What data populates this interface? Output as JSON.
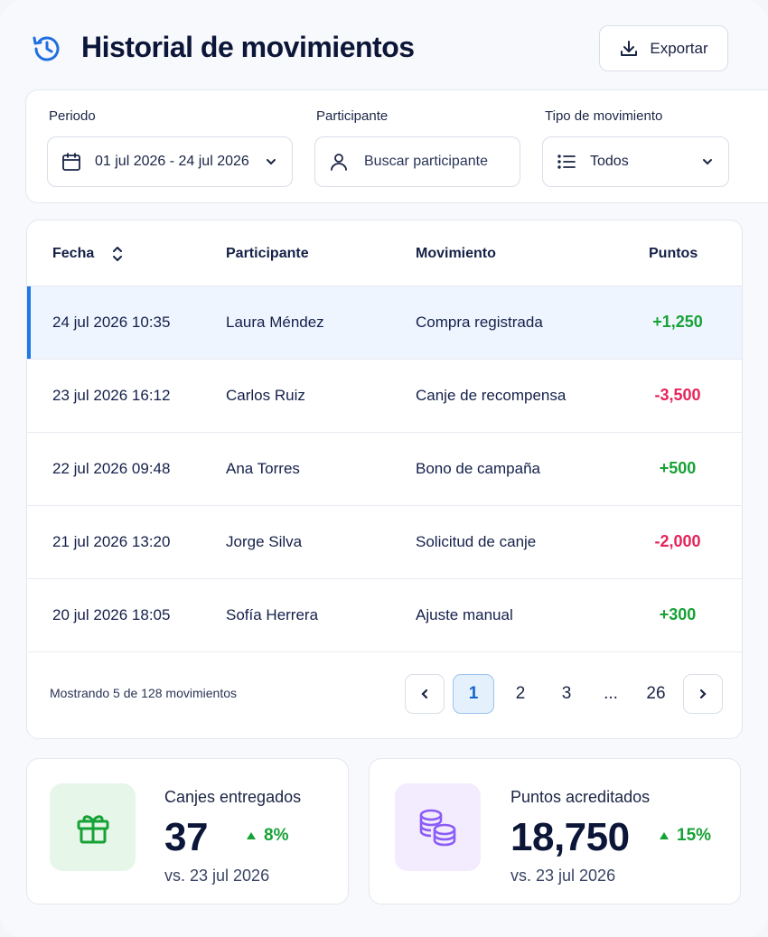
{
  "header": {
    "title": "Historial de movimientos",
    "export_label": "Exportar"
  },
  "filters": {
    "period": {
      "label": "Periodo",
      "value": "01 jul 2026 - 24 jul 2026"
    },
    "participant": {
      "label": "Participante",
      "placeholder": "Buscar participante"
    },
    "type": {
      "label": "Tipo de movimiento",
      "value": "Todos"
    }
  },
  "table": {
    "columns": [
      "Fecha",
      "Participante",
      "Movimiento",
      "Puntos"
    ],
    "rows": [
      {
        "date": "24 jul 2026 10:35",
        "participant": "Laura Méndez",
        "movement": "Compra registrada",
        "points": "+1,250",
        "sign": "pos",
        "selected": true
      },
      {
        "date": "23 jul 2026 16:12",
        "participant": "Carlos Ruiz",
        "movement": "Canje de recompensa",
        "points": "-3,500",
        "sign": "neg"
      },
      {
        "date": "22 jul 2026 09:48",
        "participant": "Ana Torres",
        "movement": "Bono de campaña",
        "points": "+500",
        "sign": "pos"
      },
      {
        "date": "21 jul 2026 13:20",
        "participant": "Jorge Silva",
        "movement": "Solicitud de canje",
        "points": "-2,000",
        "sign": "neg"
      },
      {
        "date": "20 jul 2026 18:05",
        "participant": "Sofía Herrera",
        "movement": "Ajuste manual",
        "points": "+300",
        "sign": "pos"
      }
    ],
    "footer": "Mostrando 5 de 128 movimientos",
    "pagination": {
      "pages": [
        "1",
        "2",
        "3",
        "...",
        "26"
      ],
      "current": "1"
    }
  },
  "stats": [
    {
      "label": "Canjes entregados",
      "value": "37",
      "change": "8%",
      "sub": "vs. 23 jul 2026",
      "icon": "gift-icon",
      "color": "#17a236"
    },
    {
      "label": "Puntos acreditados",
      "value": "18,750",
      "change": "15%",
      "sub": "vs. 23 jul 2026",
      "icon": "coins-icon",
      "color": "#8b5cf6"
    }
  ],
  "colors": {
    "accent": "#1f78e8",
    "positive": "#17a236",
    "negative": "#e5245a"
  }
}
